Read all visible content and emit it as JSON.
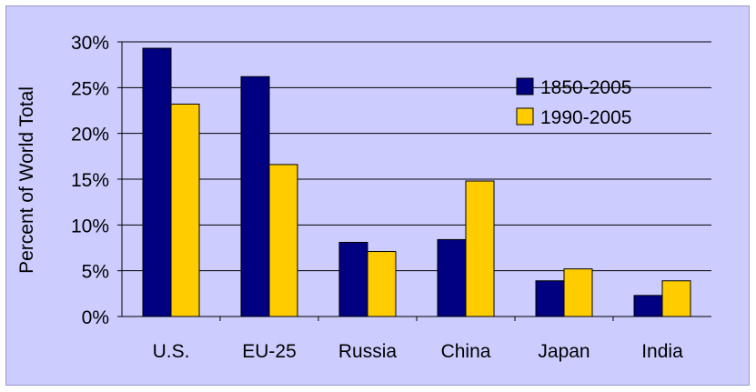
{
  "chart_data": {
    "type": "bar",
    "categories": [
      "U.S.",
      "EU-25",
      "Russia",
      "China",
      "Japan",
      "India"
    ],
    "series": [
      {
        "name": "1850-2005",
        "color": "#000080",
        "values": [
          29.3,
          26.2,
          8.1,
          8.4,
          3.9,
          2.3
        ]
      },
      {
        "name": "1990-2005",
        "color": "#ffcc00",
        "values": [
          23.2,
          16.6,
          7.1,
          14.8,
          5.2,
          3.9
        ]
      }
    ],
    "title": "",
    "xlabel": "",
    "ylabel": "Percent of World Total",
    "ylim": [
      0,
      30
    ],
    "yticks": [
      0,
      5,
      10,
      15,
      20,
      25,
      30
    ],
    "ytick_labels": [
      "0%",
      "5%",
      "10%",
      "15%",
      "20%",
      "25%",
      "30%"
    ],
    "grid": true,
    "legend_position": "top-right",
    "background_color": "#ccccff"
  }
}
